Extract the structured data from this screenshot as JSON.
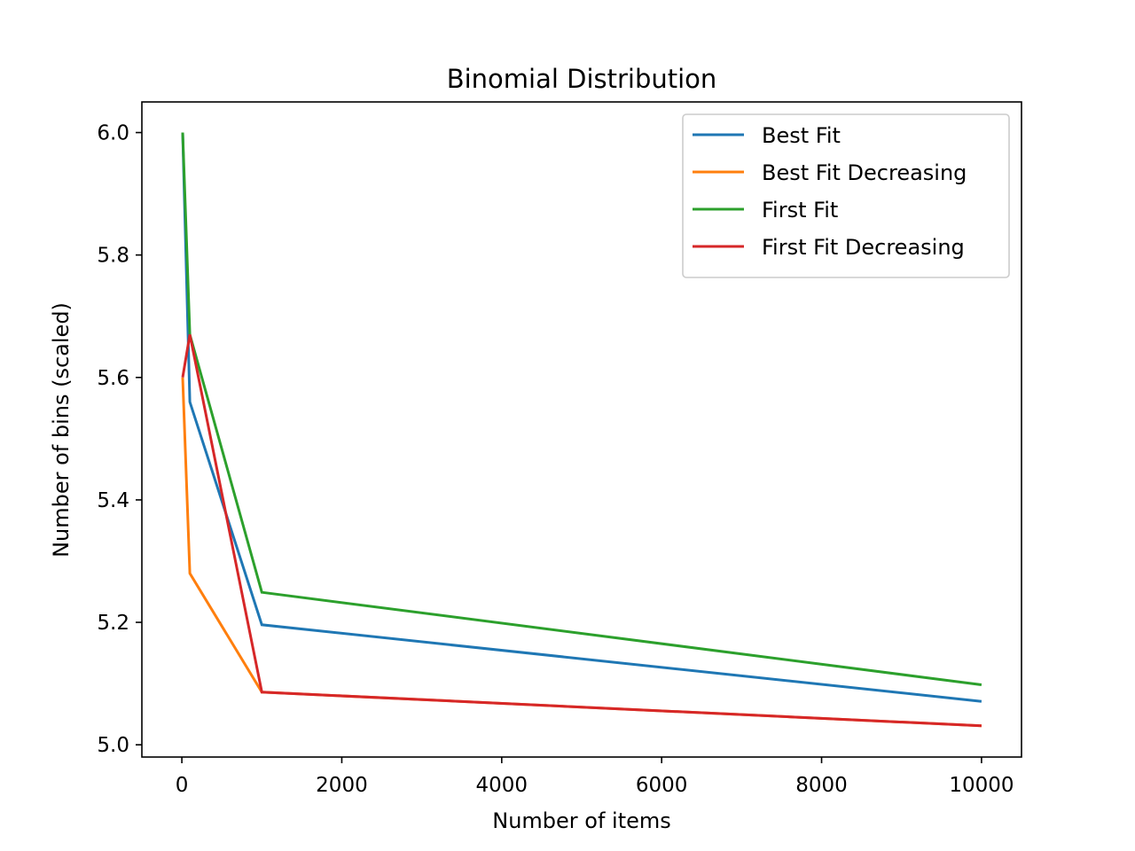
{
  "chart_data": {
    "type": "line",
    "title": "Binomial Distribution",
    "xlabel": "Number of items",
    "ylabel": "Number of bins (scaled)",
    "x": [
      10,
      100,
      1000,
      10000
    ],
    "xlim": [
      -500,
      10500
    ],
    "ylim": [
      4.98,
      6.05
    ],
    "xticks": [
      0,
      2000,
      4000,
      6000,
      8000,
      10000
    ],
    "xtick_labels": [
      "0",
      "2000",
      "4000",
      "6000",
      "8000",
      "10000"
    ],
    "yticks": [
      5.0,
      5.2,
      5.4,
      5.6,
      5.8,
      6.0
    ],
    "ytick_labels": [
      "5.0",
      "5.2",
      "5.4",
      "5.6",
      "5.8",
      "6.0"
    ],
    "grid": false,
    "legend_position": "top-right",
    "series": [
      {
        "name": "Best Fit",
        "color": "#1f77b4",
        "values": [
          6.0,
          5.56,
          5.196,
          5.071
        ]
      },
      {
        "name": "Best Fit Decreasing",
        "color": "#ff7f0e",
        "values": [
          5.6,
          5.28,
          5.086,
          5.031
        ]
      },
      {
        "name": "First Fit",
        "color": "#2ca02c",
        "values": [
          6.0,
          5.67,
          5.249,
          5.098
        ]
      },
      {
        "name": "First Fit Decreasing",
        "color": "#d62728",
        "values": [
          5.6,
          5.67,
          5.086,
          5.031
        ]
      }
    ]
  }
}
